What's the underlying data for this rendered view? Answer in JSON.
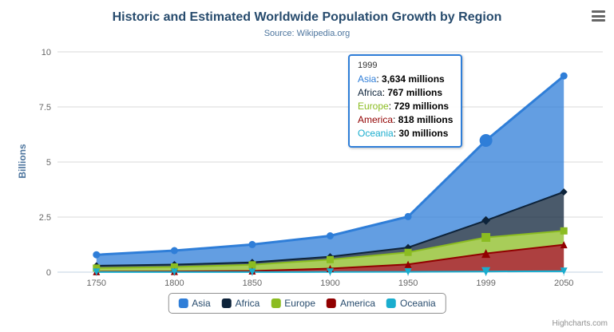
{
  "header": {
    "title": "Historic and Estimated Worldwide Population Growth by Region",
    "subtitle": "Source: Wikipedia.org"
  },
  "export_menu": {
    "icon": "hamburger-menu"
  },
  "tooltip": {
    "header": "1999",
    "rows": [
      {
        "series": "Asia",
        "value": "3,634 millions"
      },
      {
        "series": "Africa",
        "value": "767 millions"
      },
      {
        "series": "Europe",
        "value": "729 millions"
      },
      {
        "series": "America",
        "value": "818 millions"
      },
      {
        "series": "Oceania",
        "value": "30 millions"
      }
    ]
  },
  "credits": {
    "text": "Highcharts.com"
  },
  "chart_data": {
    "type": "area",
    "stacking": "normal",
    "title": "Historic and Estimated Worldwide Population Growth by Region",
    "subtitle": "Source: Wikipedia.org",
    "categories": [
      "1750",
      "1800",
      "1850",
      "1900",
      "1950",
      "1999",
      "2050"
    ],
    "xlabel": "",
    "ylabel": "Billions",
    "values_unit": "millions",
    "ylim_billions": [
      0,
      10
    ],
    "yticks_billions": [
      0,
      2.5,
      5,
      7.5,
      10
    ],
    "grid": true,
    "legend_position": "bottom",
    "hover_category": "1999",
    "hover_index": 5,
    "series": [
      {
        "name": "Asia",
        "color": "#2f7ed8",
        "marker": "circle",
        "values": [
          502,
          635,
          809,
          947,
          1402,
          3634,
          5268
        ]
      },
      {
        "name": "Africa",
        "color": "#0d233a",
        "marker": "diamond",
        "values": [
          106,
          107,
          111,
          133,
          221,
          767,
          1766
        ]
      },
      {
        "name": "Europe",
        "color": "#8bbc21",
        "marker": "square",
        "values": [
          163,
          203,
          276,
          408,
          547,
          729,
          628
        ]
      },
      {
        "name": "America",
        "color": "#910000",
        "marker": "triangle",
        "values": [
          18,
          31,
          54,
          156,
          339,
          818,
          1201
        ]
      },
      {
        "name": "Oceania",
        "color": "#1aadce",
        "marker": "triangle-down",
        "values": [
          2,
          2,
          2,
          6,
          13,
          30,
          46
        ]
      }
    ]
  }
}
